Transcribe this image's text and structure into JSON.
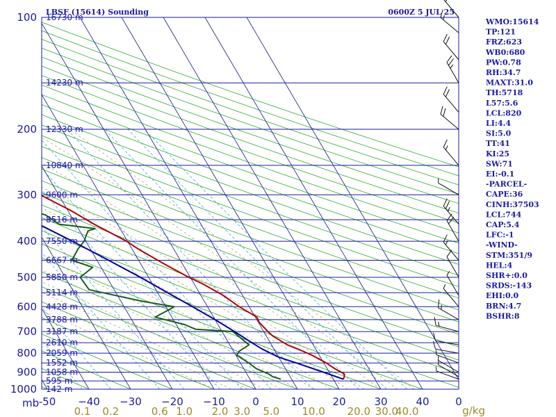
{
  "header": {
    "station": "LBSF (15614) Sounding",
    "time": "0600Z  5 JUL 25"
  },
  "chart_data": {
    "type": "skew-t log-p",
    "xlabel_left": "mb",
    "xlabel_right": "g/kg",
    "pressure_levels": [
      100,
      200,
      300,
      400,
      500,
      600,
      700,
      800,
      900,
      1000
    ],
    "pressure_tick_labels": [
      "100",
      "200",
      "300",
      "400",
      "500",
      "600",
      "700",
      "800",
      "900",
      "1000"
    ],
    "temperature_ticks": [
      -50,
      -40,
      -30,
      -20,
      -10,
      0,
      10,
      20,
      30,
      40
    ],
    "temperature_tick_labels": [
      "-50",
      "−40",
      "−30",
      "−20",
      "−10",
      "0",
      "10",
      "20",
      "30",
      "40"
    ],
    "temperature_tick_label_zero_c": "0",
    "mixing_ratio_labels": [
      "0.1",
      "0.2",
      "0.6",
      "1.0",
      "2.0",
      "3.0",
      "5.0",
      "10.0",
      "20.0",
      "30.0",
      "40.0"
    ],
    "height_labels": [
      {
        "p": 100,
        "label": "16730 m"
      },
      {
        "p": 150,
        "label": "14230 m"
      },
      {
        "p": 200,
        "label": "12330 m"
      },
      {
        "p": 250,
        "label": "10840 m"
      },
      {
        "p": 300,
        "label": "9600 m"
      },
      {
        "p": 350,
        "label": "8516 m"
      },
      {
        "p": 400,
        "label": "7550 m"
      },
      {
        "p": 450,
        "label": "6667 m"
      },
      {
        "p": 500,
        "label": "5850 m"
      },
      {
        "p": 550,
        "label": "5114 m"
      },
      {
        "p": 600,
        "label": "4428 m"
      },
      {
        "p": 650,
        "label": "3788 m"
      },
      {
        "p": 700,
        "label": "3187 m"
      },
      {
        "p": 750,
        "label": "2610 m"
      },
      {
        "p": 800,
        "label": "2059 m"
      },
      {
        "p": 850,
        "label": "1552 m"
      },
      {
        "p": 900,
        "label": "1058 m"
      },
      {
        "p": 950,
        "label": "595 m"
      },
      {
        "p": 1000,
        "label": "142 m"
      }
    ],
    "series": [
      {
        "name": "",
        "role": "temperature",
        "color": "#b00000",
        "points": [
          [
            940,
            22.4
          ],
          [
            925,
            23.0
          ],
          [
            910,
            23.4
          ],
          [
            880,
            21.8
          ],
          [
            850,
            20.6
          ],
          [
            810,
            18.2
          ],
          [
            790,
            16.6
          ],
          [
            760,
            13.8
          ],
          [
            720,
            11.6
          ],
          [
            700,
            11.0
          ],
          [
            660,
            10.2
          ],
          [
            640,
            10.4
          ],
          [
            600,
            7.6
          ],
          [
            560,
            5.4
          ],
          [
            520,
            2.0
          ],
          [
            500,
            -0.4
          ],
          [
            460,
            -4.4
          ],
          [
            420,
            -8.5
          ],
          [
            400,
            -10.2
          ],
          [
            360,
            -15.6
          ],
          [
            330,
            -19.4
          ],
          [
            300,
            -24.4
          ],
          [
            270,
            -28.4
          ],
          [
            240,
            -33.6
          ],
          [
            220,
            -37.6
          ],
          [
            200,
            -41.4
          ],
          [
            180,
            -46.6
          ],
          [
            160,
            -50.9
          ],
          [
            140,
            -55.8
          ],
          [
            130,
            -58.8
          ],
          [
            120,
            -62.0
          ],
          [
            110,
            -64.2
          ],
          [
            100,
            -66.0
          ]
        ]
      },
      {
        "name": "",
        "role": "dewpoint",
        "color": "#1a5c1a",
        "points": [
          [
            940,
            7.4
          ],
          [
            925,
            5.8
          ],
          [
            910,
            5.2
          ],
          [
            880,
            3.0
          ],
          [
            850,
            2.0
          ],
          [
            810,
            0.2
          ],
          [
            790,
            1.4
          ],
          [
            760,
            4.6
          ],
          [
            700,
            2.6
          ],
          [
            690,
            -6.0
          ],
          [
            670,
            -8.0
          ],
          [
            640,
            -14.0
          ],
          [
            610,
            -9.5
          ],
          [
            600,
            -8.0
          ],
          [
            580,
            -15.0
          ],
          [
            540,
            -26.0
          ],
          [
            500,
            -26.4
          ],
          [
            470,
            -22.0
          ],
          [
            450,
            -26.0
          ],
          [
            420,
            -23.0
          ],
          [
            400,
            -20.4
          ],
          [
            385,
            -19.0
          ],
          [
            375,
            -18.0
          ],
          [
            370,
            -16.0
          ],
          [
            360,
            -24.0
          ],
          [
            340,
            -26.0
          ],
          [
            320,
            -32.0
          ],
          [
            300,
            -36.0
          ],
          [
            280,
            -43.0
          ],
          [
            260,
            -50.0
          ],
          [
            245,
            -54.0
          ],
          [
            235,
            -53.0
          ],
          [
            215,
            -57.0
          ],
          [
            210,
            -57.0
          ],
          [
            200,
            -59.0
          ],
          [
            190,
            -61.0
          ],
          [
            170,
            -64.0
          ],
          [
            160,
            -65.0
          ],
          [
            140,
            -66.0
          ],
          [
            120,
            -69.0
          ],
          [
            100,
            -74.0
          ]
        ]
      },
      {
        "name": "",
        "role": "parcel",
        "color": "#0000a0",
        "points": [
          [
            940,
            22.4
          ],
          [
            900,
            18.6
          ],
          [
            850,
            13.4
          ],
          [
            820,
            10.0
          ],
          [
            800,
            8.6
          ],
          [
            780,
            7.2
          ],
          [
            750,
            5.6
          ],
          [
            700,
            3.0
          ],
          [
            650,
            0.0
          ],
          [
            600,
            -3.6
          ],
          [
            550,
            -7.6
          ],
          [
            500,
            -12.0
          ],
          [
            450,
            -17.2
          ],
          [
            400,
            -23.2
          ],
          [
            350,
            -30.4
          ],
          [
            300,
            -38.8
          ],
          [
            250,
            -48.0
          ],
          [
            200,
            -58.8
          ],
          [
            150,
            -72.0
          ],
          [
            130,
            -78.0
          ],
          [
            125,
            -79.0
          ]
        ]
      }
    ],
    "wind_barbs": [
      {
        "p": 940,
        "dir": 290,
        "kt": 5
      },
      {
        "p": 925,
        "dir": 300,
        "kt": 5
      },
      {
        "p": 900,
        "dir": 300,
        "kt": 5
      },
      {
        "p": 850,
        "dir": 290,
        "kt": 5
      },
      {
        "p": 800,
        "dir": 280,
        "kt": 10
      },
      {
        "p": 760,
        "dir": 280,
        "kt": 10
      },
      {
        "p": 700,
        "dir": 285,
        "kt": 15
      },
      {
        "p": 650,
        "dir": 300,
        "kt": 15
      },
      {
        "p": 600,
        "dir": 320,
        "kt": 5
      },
      {
        "p": 560,
        "dir": 330,
        "kt": 5
      },
      {
        "p": 500,
        "dir": 330,
        "kt": 10
      },
      {
        "p": 450,
        "dir": 320,
        "kt": 15
      },
      {
        "p": 400,
        "dir": 330,
        "kt": 20
      },
      {
        "p": 360,
        "dir": 320,
        "kt": 25
      },
      {
        "p": 300,
        "dir": 300,
        "kt": 5
      },
      {
        "p": 250,
        "dir": 320,
        "kt": 15
      },
      {
        "p": 200,
        "dir": 310,
        "kt": 20
      },
      {
        "p": 180,
        "dir": 320,
        "kt": 20
      },
      {
        "p": 150,
        "dir": 330,
        "kt": 25
      },
      {
        "p": 130,
        "dir": 320,
        "kt": 20
      },
      {
        "p": 110,
        "dir": 310,
        "kt": 15
      },
      {
        "p": 100,
        "dir": 320,
        "kt": 15
      }
    ]
  },
  "indices": [
    "WMO:15614",
    "TP:121",
    "FRZ:623",
    "WB0:680",
    "PW:0.78",
    "RH:34.7",
    "MAXT:31.0",
    "TH:5718",
    "L57:5.6",
    "LCL:820",
    "LI:4.4",
    "SI:5.0",
    "TT:41",
    "KI:25",
    "SW:71",
    "EI:-0.1",
    "-PARCEL-",
    "CAPE:36",
    "CINH:37503",
    "LCL:744",
    "CAP:5.4",
    "LFC:-1",
    "-WIND-",
    "STM:351/9",
    "HEL:4",
    "SHR+:0.0",
    "SRDS:-143",
    "EHI:0.0",
    "BRN:4.7",
    "BSHR:8"
  ],
  "colors": {
    "frame": "#1a1aa0",
    "isobar": "#1a1aa0",
    "dry_adiabat": "#2eaa2e",
    "isotherm": "#2a2aa0",
    "mixing_ratio": "#4fb6d8",
    "moist_adiabat": "#b0a060"
  }
}
